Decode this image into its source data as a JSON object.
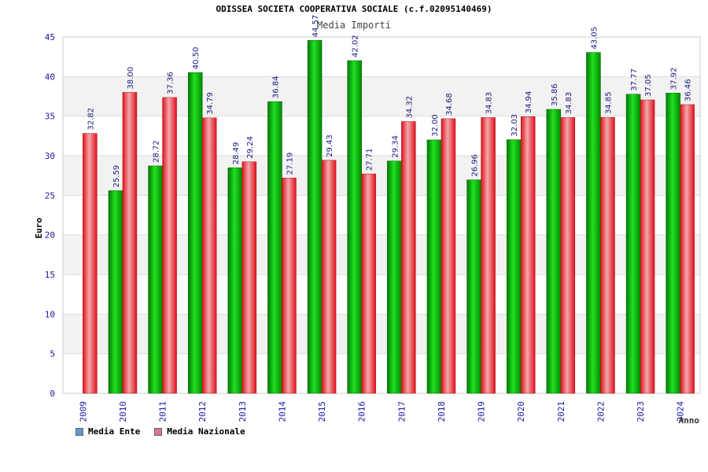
{
  "chart_data": {
    "type": "bar",
    "title": "ODISSEA SOCIETA COOPERATIVA SOCIALE (c.f.02095140469)",
    "subtitle": "Media Importi",
    "xlabel": "Anno",
    "ylabel": "Euro",
    "ylim": [
      0,
      45
    ],
    "yticks": [
      0,
      5,
      10,
      15,
      20,
      25,
      30,
      35,
      40,
      45
    ],
    "categories": [
      "2009",
      "2010",
      "2011",
      "2012",
      "2013",
      "2014",
      "2015",
      "2016",
      "2017",
      "2018",
      "2019",
      "2020",
      "2021",
      "2022",
      "2023",
      "2024"
    ],
    "series": [
      {
        "name": "Media Ente",
        "color": "#00aa00",
        "values": [
          null,
          25.59,
          28.72,
          40.5,
          28.49,
          36.84,
          44.57,
          42.02,
          29.34,
          32.0,
          26.96,
          32.03,
          35.86,
          43.05,
          37.77,
          37.92
        ],
        "labels": [
          "",
          "25.59",
          "28.72",
          "40.50",
          "28.49",
          "36.84",
          "44.57",
          "42.02",
          "29.34",
          "32.00",
          "26.96",
          "32.03",
          "35.86",
          "43.05",
          "37.77",
          "37.92"
        ]
      },
      {
        "name": "Media Nazionale",
        "color": "#e0202a",
        "values": [
          32.82,
          38.0,
          37.36,
          34.79,
          29.24,
          27.19,
          29.43,
          27.71,
          34.32,
          34.68,
          34.83,
          34.94,
          34.83,
          34.85,
          37.05,
          36.46
        ],
        "labels": [
          "32.82",
          "38.00",
          "37.36",
          "34.79",
          "29.24",
          "27.19",
          "29.43",
          "27.71",
          "34.32",
          "34.68",
          "34.83",
          "34.94",
          "34.83",
          "34.85",
          "37.05",
          "36.46"
        ]
      }
    ],
    "grid": true,
    "legend_position": "bottom-left",
    "legend_colors": {
      "Media Ente": "#5b9bd5",
      "Media Nazionale": "#d9739b"
    }
  }
}
